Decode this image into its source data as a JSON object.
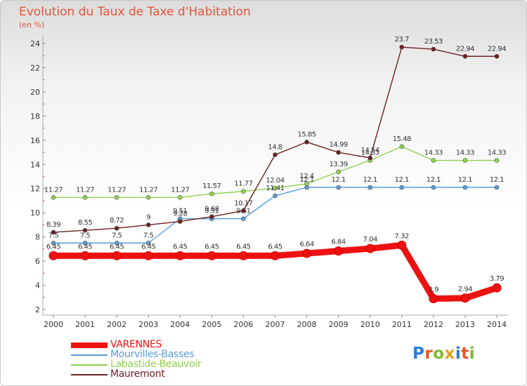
{
  "header": {
    "title": "Evolution du Taux de Taxe d'Habitation",
    "unit": "(en %)"
  },
  "chart_data": {
    "type": "line",
    "title": "Evolution du Taux de Taxe d'Habitation",
    "subtitle": "(en %)",
    "x": [
      "2000",
      "2001",
      "2002",
      "2003",
      "2004",
      "2005",
      "2006",
      "2007",
      "2008",
      "2009",
      "2010",
      "2011",
      "2012",
      "2013",
      "2014"
    ],
    "ylim": [
      2,
      24
    ],
    "yticks": [
      "2",
      "4",
      "6",
      "8",
      "10",
      "12",
      "14",
      "16",
      "18",
      "20",
      "22",
      "24"
    ],
    "grid": false,
    "legend_position": "bottom-left",
    "series": [
      {
        "name": "VARENNES",
        "color": "#ee1111",
        "values": [
          6.45,
          6.45,
          6.45,
          6.45,
          6.45,
          6.45,
          6.45,
          6.45,
          6.64,
          6.84,
          7.04,
          7.32,
          2.9,
          2.94,
          3.79
        ],
        "labels": [
          "6.45",
          "6.45",
          "6.45",
          "6.45",
          "6.45",
          "6.45",
          "6.45",
          "6.45",
          "6.64",
          "6.84",
          "7.04",
          "7.32",
          "2.9",
          "2.94",
          "3.79"
        ]
      },
      {
        "name": "Mourvilles-Basses",
        "color": "#5b9bd5",
        "values": [
          7.5,
          7.5,
          7.5,
          7.5,
          9.51,
          9.51,
          9.51,
          11.41,
          12.1,
          12.1,
          12.1,
          12.1,
          12.1,
          12.1,
          12.1
        ],
        "labels": [
          "7.5",
          "7.5",
          "7.5",
          "7.5",
          "9.51",
          "9.51",
          "9.51",
          "11.41",
          "12.1",
          "12.1",
          "12.1",
          "12.1",
          "12.1",
          "12.1",
          "12.1"
        ]
      },
      {
        "name": "Labastide-Beauvoir",
        "color": "#8fd14f",
        "values": [
          11.27,
          11.27,
          11.27,
          11.27,
          11.27,
          11.57,
          11.77,
          12.04,
          12.4,
          13.39,
          14.33,
          15.48,
          14.33,
          14.33,
          14.33
        ],
        "labels": [
          "11.27",
          "11.27",
          "11.27",
          "11.27",
          "11.27",
          "11.57",
          "11.77",
          "12.04",
          "12.4",
          "13.39",
          "14.33",
          "15.48",
          "14.33",
          "14.33",
          "14.33"
        ]
      },
      {
        "name": "Mauremont",
        "color": "#6b1f1f",
        "values": [
          8.39,
          8.55,
          8.72,
          9,
          9.28,
          9.68,
          10.17,
          14.8,
          15.85,
          14.99,
          14.54,
          23.7,
          23.53,
          22.94,
          22.94
        ],
        "labels": [
          "8.39",
          "8.55",
          "8.72",
          "9",
          "9.28",
          "9.68",
          "10.17",
          "14.8",
          "15.85",
          "14.99",
          "14.54",
          "23.7",
          "23.53",
          "22.94",
          "22.94"
        ]
      }
    ]
  },
  "legend": {
    "items": [
      {
        "label": "VARENNES",
        "color": "#ee1111"
      },
      {
        "label": "Mourvilles-Basses",
        "color": "#5b9bd5"
      },
      {
        "label": "Labastide-Beauvoir",
        "color": "#8fd14f"
      },
      {
        "label": "Mauremont",
        "color": "#6b1f1f"
      }
    ]
  },
  "brand": {
    "logo_text": "Proxiti",
    "letter_colors": [
      "#2b7bd6",
      "#e05a2a",
      "#7fb82e",
      "#e0a21a",
      "#2b7bd6",
      "#e05a2a",
      "#7fb82e"
    ]
  }
}
